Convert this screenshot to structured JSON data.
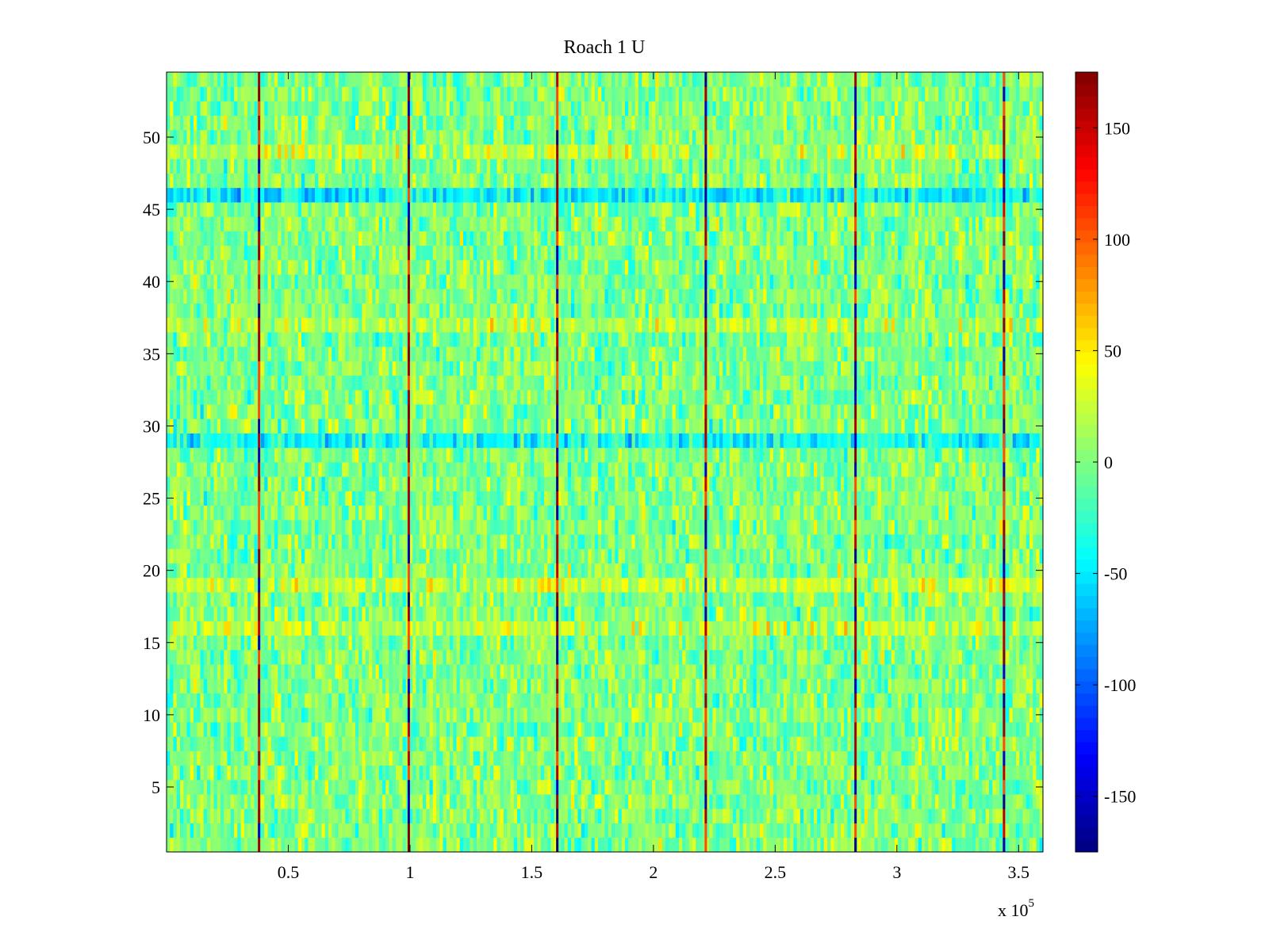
{
  "chart_data": {
    "type": "heatmap",
    "title": "Roach 1 U",
    "xlabel": "",
    "ylabel": "",
    "x_multiplier_label": "x 10",
    "x_multiplier_exponent": "5",
    "xlim": [
      0,
      3.6
    ],
    "ylim": [
      0.5,
      54.5
    ],
    "x_ticks": [
      0.5,
      1,
      1.5,
      2,
      2.5,
      3,
      3.5
    ],
    "x_tick_labels": [
      "0.5",
      "1",
      "1.5",
      "2",
      "2.5",
      "3",
      "3.5"
    ],
    "y_ticks": [
      5,
      10,
      15,
      20,
      25,
      30,
      35,
      40,
      45,
      50
    ],
    "y_tick_labels": [
      "5",
      "10",
      "15",
      "20",
      "25",
      "30",
      "35",
      "40",
      "45",
      "50"
    ],
    "n_rows": 54,
    "colorbar": {
      "colormap": "jet",
      "clim": [
        -175,
        175
      ],
      "ticks": [
        150,
        100,
        50,
        0,
        -50,
        -100,
        -150
      ],
      "tick_labels": [
        "150",
        "100",
        "50",
        "0",
        "-50",
        "-100",
        "-150"
      ]
    },
    "background_value_range": [
      -60,
      60
    ],
    "vertical_stripes_x": [
      0.38,
      0.995,
      1.605,
      2.215,
      2.83,
      3.44
    ],
    "vertical_stripe_value_range": [
      -175,
      175
    ],
    "band_rows": [
      {
        "row": 46,
        "mean": -45
      },
      {
        "row": 29,
        "mean": -40
      },
      {
        "row": 49,
        "mean": 20
      },
      {
        "row": 19,
        "mean": 25
      },
      {
        "row": 16,
        "mean": 20
      },
      {
        "row": 37,
        "mean": 15
      }
    ],
    "grid": false
  }
}
